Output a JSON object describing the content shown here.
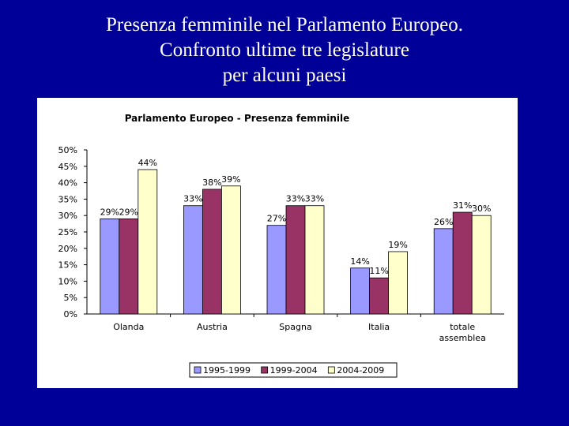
{
  "slide": {
    "title_lines": [
      "Presenza femminile nel Parlamento Europeo.",
      "Confronto ultime tre legislature",
      "per alcuni paesi"
    ]
  },
  "colors": {
    "background": "#000099",
    "series": [
      "#9999FF",
      "#993366",
      "#FFFFCC"
    ]
  },
  "chart_data": {
    "type": "bar",
    "title": "Parlamento Europeo - Presenza femminile",
    "categories": [
      "Olanda",
      "Austria",
      "Spagna",
      "Italia",
      "totale assemblea"
    ],
    "series": [
      {
        "name": "1995-1999",
        "values": [
          29,
          33,
          27,
          14,
          26
        ],
        "labels": [
          "29%",
          "33%",
          "27%",
          "14%",
          "26%"
        ]
      },
      {
        "name": "1999-2004",
        "values": [
          29,
          38,
          33,
          11,
          31
        ],
        "labels": [
          "29%",
          "38%",
          "33%",
          "11%",
          "31%"
        ]
      },
      {
        "name": "2004-2009",
        "values": [
          44,
          39,
          33,
          19,
          30
        ],
        "labels": [
          "44%",
          "39%",
          "33%",
          "19%",
          "30%"
        ]
      }
    ],
    "y_ticks": [
      "0%",
      "5%",
      "10%",
      "15%",
      "20%",
      "25%",
      "30%",
      "35%",
      "40%",
      "45%",
      "50%"
    ],
    "ylim": [
      0,
      50
    ],
    "grid": false,
    "legend_position": "bottom"
  }
}
